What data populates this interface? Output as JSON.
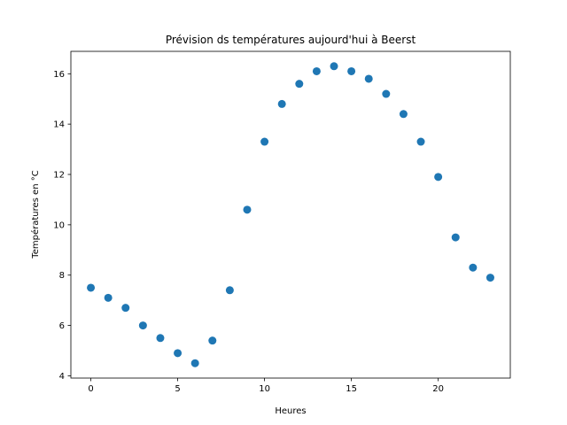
{
  "chart_data": {
    "type": "scatter",
    "title": "Prévision ds températures aujourd'hui à Beerst",
    "xlabel": "Heures",
    "ylabel": "Températures en °C",
    "xlim": [
      -1.15,
      24.15
    ],
    "ylim": [
      3.91,
      16.89
    ],
    "xticks": [
      0,
      5,
      10,
      15,
      20
    ],
    "yticks": [
      4,
      6,
      8,
      10,
      12,
      14,
      16
    ],
    "grid": false,
    "marker_color": "#1f77b4",
    "series": [
      {
        "x": [
          0,
          1,
          2,
          3,
          4,
          5,
          6,
          7,
          8,
          9,
          10,
          11,
          12,
          13,
          14,
          15,
          16,
          17,
          18,
          19,
          20,
          21,
          22,
          23
        ],
        "y": [
          7.5,
          7.1,
          6.7,
          6.0,
          5.5,
          4.9,
          4.5,
          5.4,
          7.4,
          10.6,
          13.3,
          14.8,
          15.6,
          16.1,
          16.3,
          16.1,
          15.8,
          15.2,
          14.4,
          13.3,
          11.9,
          9.5,
          8.3,
          7.9
        ]
      }
    ]
  }
}
